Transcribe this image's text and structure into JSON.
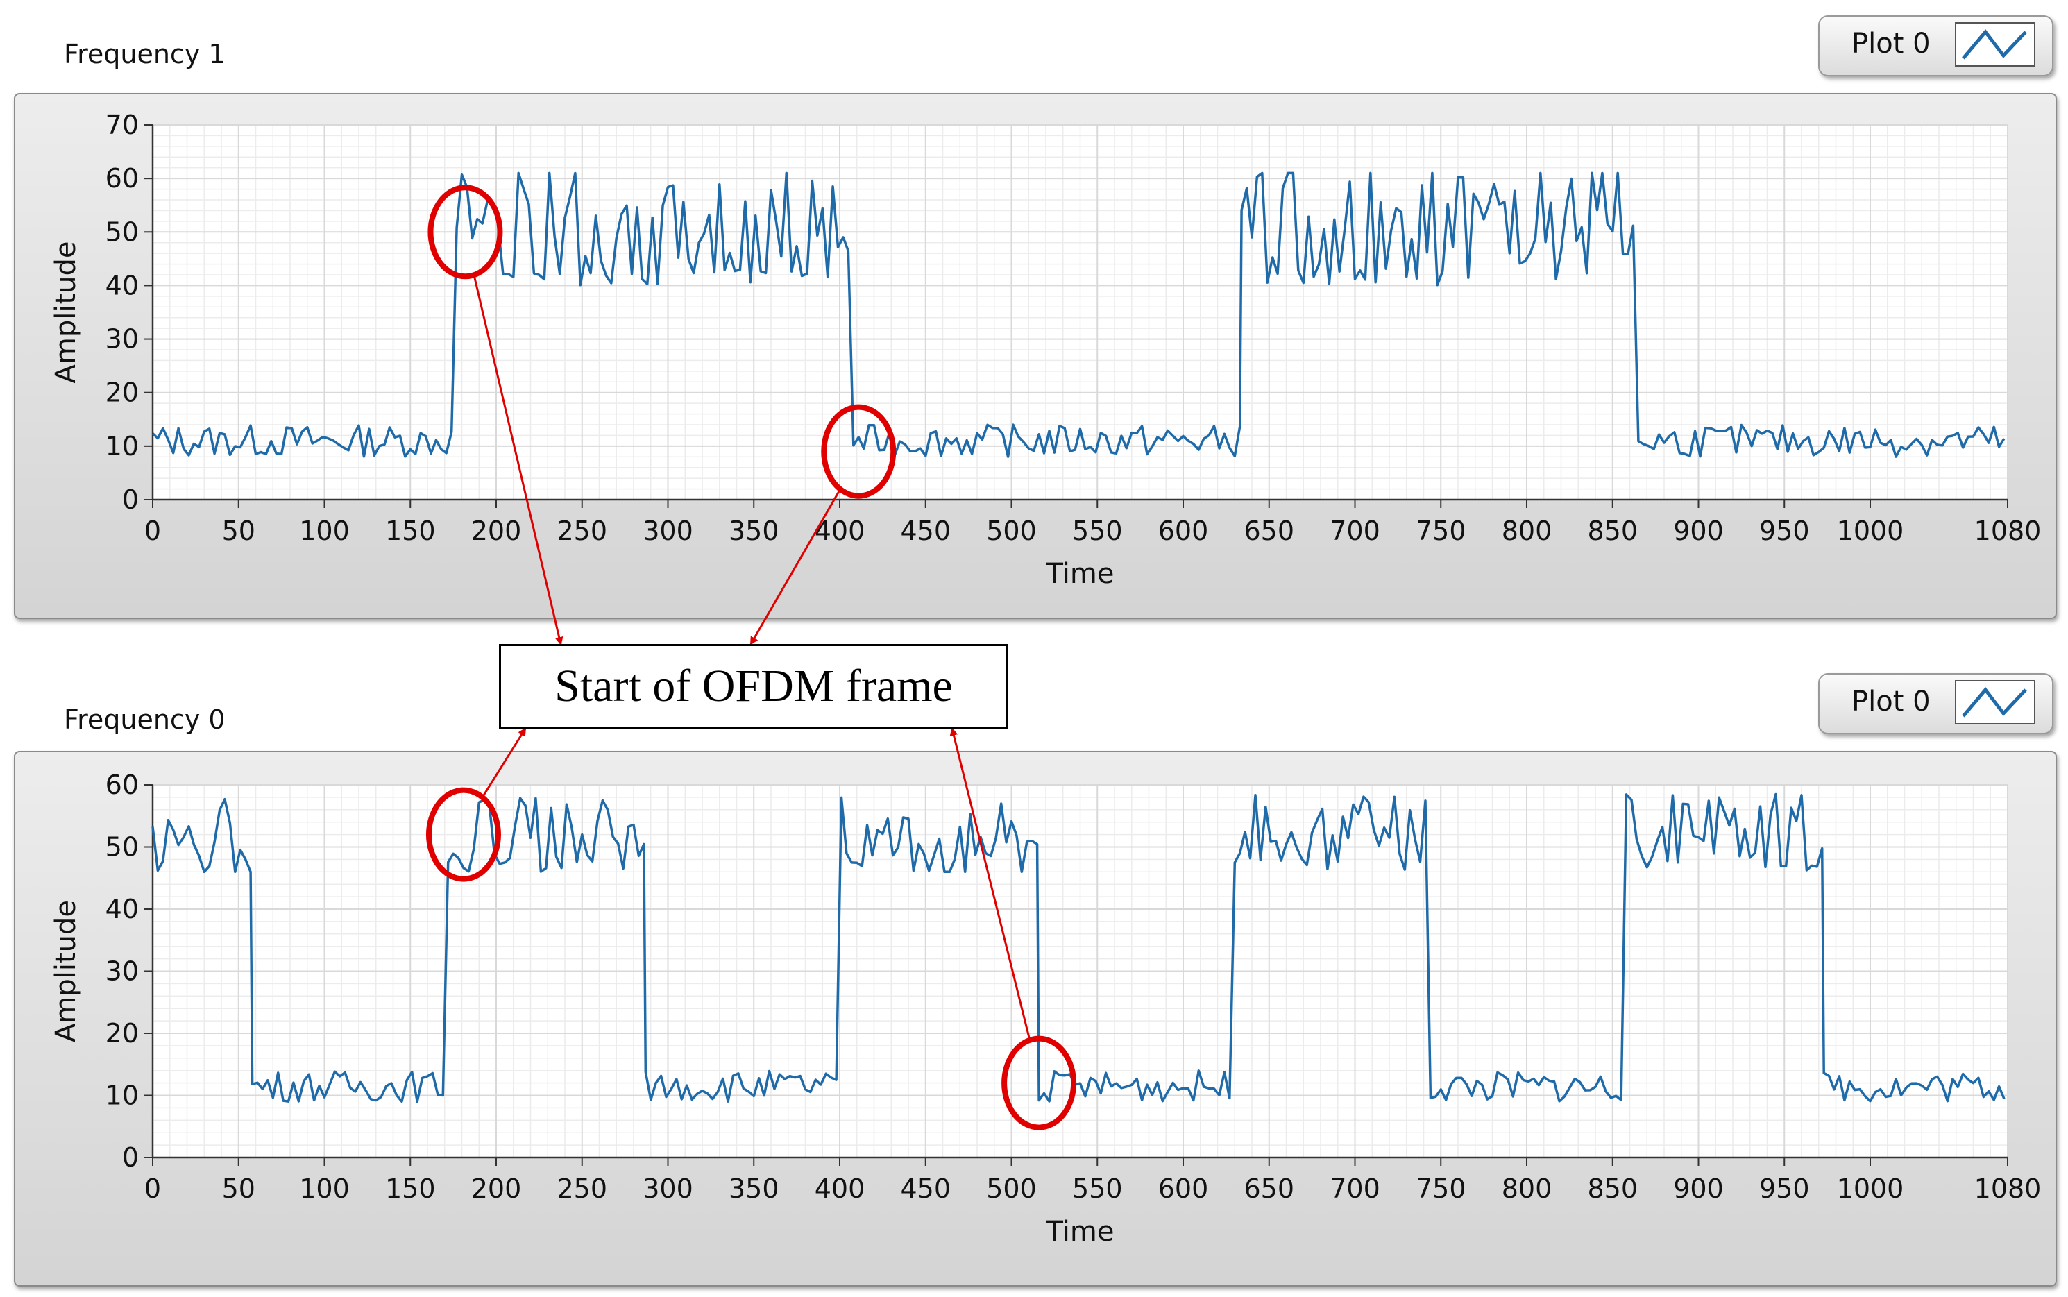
{
  "graphs": [
    {
      "label": "Frequency 1",
      "legend": "Plot 0"
    },
    {
      "label": "Frequency 0",
      "legend": "Plot 0"
    }
  ],
  "callout": {
    "text": "Start of OFDM frame"
  },
  "colors": {
    "line": "#1f6aa8",
    "grid": "#d9d9d9",
    "annotation": "#e00000"
  },
  "chart_data": [
    {
      "type": "line",
      "title": "Frequency 1",
      "xlabel": "Time",
      "ylabel": "Amplitude",
      "xlim": [
        0,
        1080
      ],
      "ylim": [
        0,
        70
      ],
      "xticks": [
        0,
        50,
        100,
        150,
        200,
        250,
        300,
        350,
        400,
        450,
        500,
        550,
        600,
        650,
        700,
        750,
        800,
        850,
        900,
        950,
        1000,
        1080
      ],
      "yticks": [
        0,
        10,
        20,
        30,
        40,
        50,
        60,
        70
      ],
      "grid": true,
      "series": [
        {
          "name": "Plot 0",
          "segments": [
            {
              "x0": 0,
              "x1": 177,
              "level": "low"
            },
            {
              "x0": 177,
              "x1": 408,
              "level": "high"
            },
            {
              "x0": 408,
              "x1": 634,
              "level": "low"
            },
            {
              "x0": 634,
              "x1": 865,
              "level": "high"
            },
            {
              "x0": 865,
              "x1": 1080,
              "level": "low"
            }
          ],
          "low_level": 11,
          "high_level": 52,
          "high_range": [
            40,
            61
          ],
          "low_range": [
            8,
            14
          ]
        }
      ],
      "annotations": [
        {
          "type": "circle",
          "x": 182,
          "y": 50
        },
        {
          "type": "circle",
          "x": 411,
          "y": 9
        }
      ]
    },
    {
      "type": "line",
      "title": "Frequency 0",
      "xlabel": "Time",
      "ylabel": "Amplitude",
      "xlim": [
        0,
        1080
      ],
      "ylim": [
        0,
        60
      ],
      "xticks": [
        0,
        50,
        100,
        150,
        200,
        250,
        300,
        350,
        400,
        450,
        500,
        550,
        600,
        650,
        700,
        750,
        800,
        850,
        900,
        950,
        1000,
        1080
      ],
      "yticks": [
        0,
        10,
        20,
        30,
        40,
        50,
        60
      ],
      "grid": true,
      "series": [
        {
          "name": "Plot 0",
          "segments": [
            {
              "x0": 0,
              "x1": 58,
              "level": "high"
            },
            {
              "x0": 58,
              "x1": 172,
              "level": "low"
            },
            {
              "x0": 172,
              "x1": 287,
              "level": "high"
            },
            {
              "x0": 287,
              "x1": 401,
              "level": "low"
            },
            {
              "x0": 401,
              "x1": 516,
              "level": "high"
            },
            {
              "x0": 516,
              "x1": 630,
              "level": "low"
            },
            {
              "x0": 630,
              "x1": 744,
              "level": "high"
            },
            {
              "x0": 744,
              "x1": 858,
              "level": "low"
            },
            {
              "x0": 858,
              "x1": 973,
              "level": "high"
            },
            {
              "x0": 973,
              "x1": 1080,
              "level": "low"
            }
          ],
          "low_level": 11.5,
          "high_level": 52,
          "high_range": [
            46,
            59
          ],
          "low_range": [
            9,
            14
          ]
        }
      ],
      "annotations": [
        {
          "type": "circle",
          "x": 181,
          "y": 52
        },
        {
          "type": "circle",
          "x": 516,
          "y": 12
        }
      ]
    }
  ]
}
